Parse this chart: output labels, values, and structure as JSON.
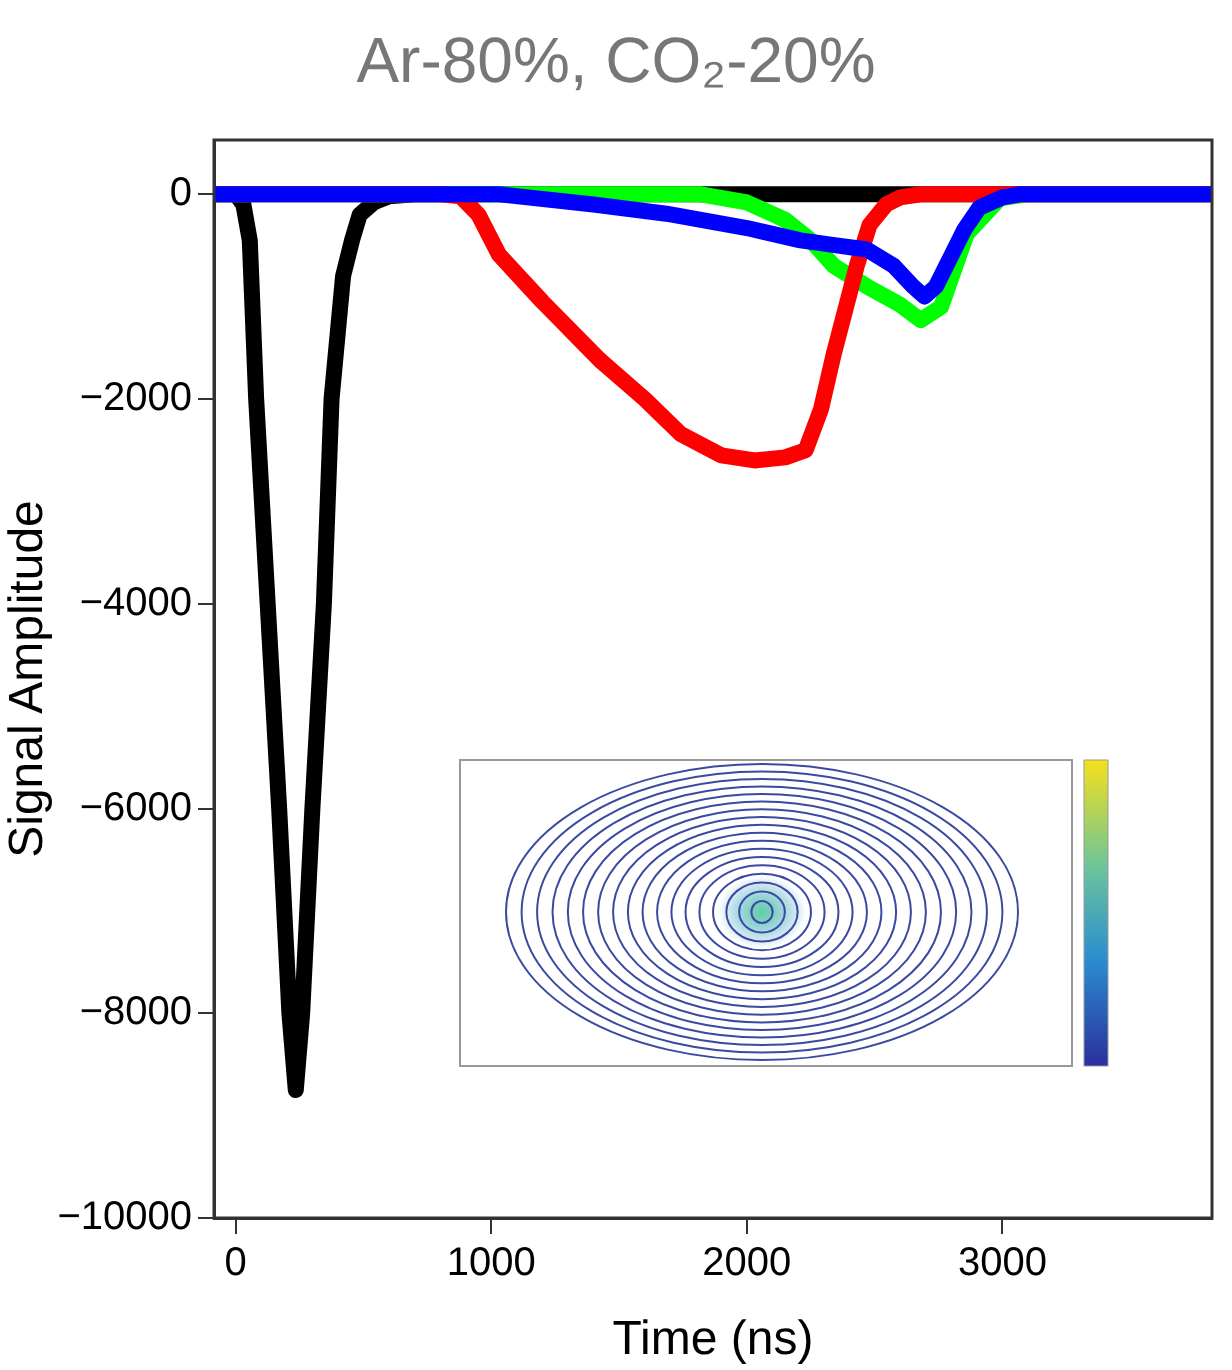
{
  "chart_data": {
    "type": "line",
    "title": "Ar-80%, CO₂-20%",
    "xlabel": "Time (ns)",
    "ylabel": "Signal Amplitude",
    "xlim": [
      -85,
      3820
    ],
    "ylim": [
      -10000,
      530
    ],
    "xticks": [
      0,
      1000,
      2000,
      3000
    ],
    "yticks": [
      {
        "value": 0,
        "label": "0"
      },
      {
        "value": -2000,
        "label": "−2000"
      },
      {
        "value": -4000,
        "label": "−4000"
      },
      {
        "value": -6000,
        "label": "−6000"
      },
      {
        "value": -8000,
        "label": "−8000"
      },
      {
        "value": -10000,
        "label": "−10000"
      }
    ],
    "grid": false,
    "legend": false,
    "marker": "none",
    "line_style": "solid",
    "series": [
      {
        "color": "#000000",
        "x": [
          -80,
          0,
          30,
          55,
          80,
          125,
          170,
          210,
          235,
          260,
          300,
          345,
          375,
          420,
          455,
          485,
          540,
          600,
          700,
          1500,
          2500,
          3000,
          3820
        ],
        "values": [
          0,
          0,
          -100,
          -450,
          -2000,
          -4000,
          -6000,
          -8000,
          -8750,
          -8000,
          -6000,
          -4000,
          -2000,
          -800,
          -450,
          -200,
          -80,
          -20,
          0,
          0,
          0,
          0,
          0
        ]
      },
      {
        "color": "#00ff00",
        "x": [
          -80,
          1000,
          1820,
          2000,
          2150,
          2250,
          2340,
          2470,
          2600,
          2680,
          2760,
          2860,
          2990,
          3100,
          3820
        ],
        "values": [
          0,
          0,
          0,
          -80,
          -250,
          -450,
          -700,
          -900,
          -1080,
          -1230,
          -1100,
          -390,
          -40,
          0,
          0
        ]
      },
      {
        "color": "#ff0000",
        "x": [
          -80,
          800,
          880,
          950,
          1030,
          1200,
          1425,
          1600,
          1740,
          1900,
          2030,
          2150,
          2230,
          2290,
          2340,
          2430,
          2480,
          2545,
          2600,
          2680,
          3150,
          3820
        ],
        "values": [
          0,
          0,
          -20,
          -200,
          -590,
          -1050,
          -1620,
          -2000,
          -2340,
          -2550,
          -2600,
          -2570,
          -2500,
          -2100,
          -1560,
          -700,
          -300,
          -100,
          -30,
          0,
          0,
          0
        ]
      },
      {
        "color": "#0000ff",
        "x": [
          -80,
          1030,
          1400,
          1685,
          2000,
          2210,
          2350,
          2470,
          2575,
          2650,
          2695,
          2740,
          2780,
          2850,
          2910,
          3000,
          3070,
          3820
        ],
        "values": [
          0,
          0,
          -100,
          -190,
          -330,
          -450,
          -500,
          -540,
          -700,
          -900,
          -1000,
          -900,
          -700,
          -350,
          -130,
          -30,
          0,
          0
        ]
      }
    ]
  }
}
